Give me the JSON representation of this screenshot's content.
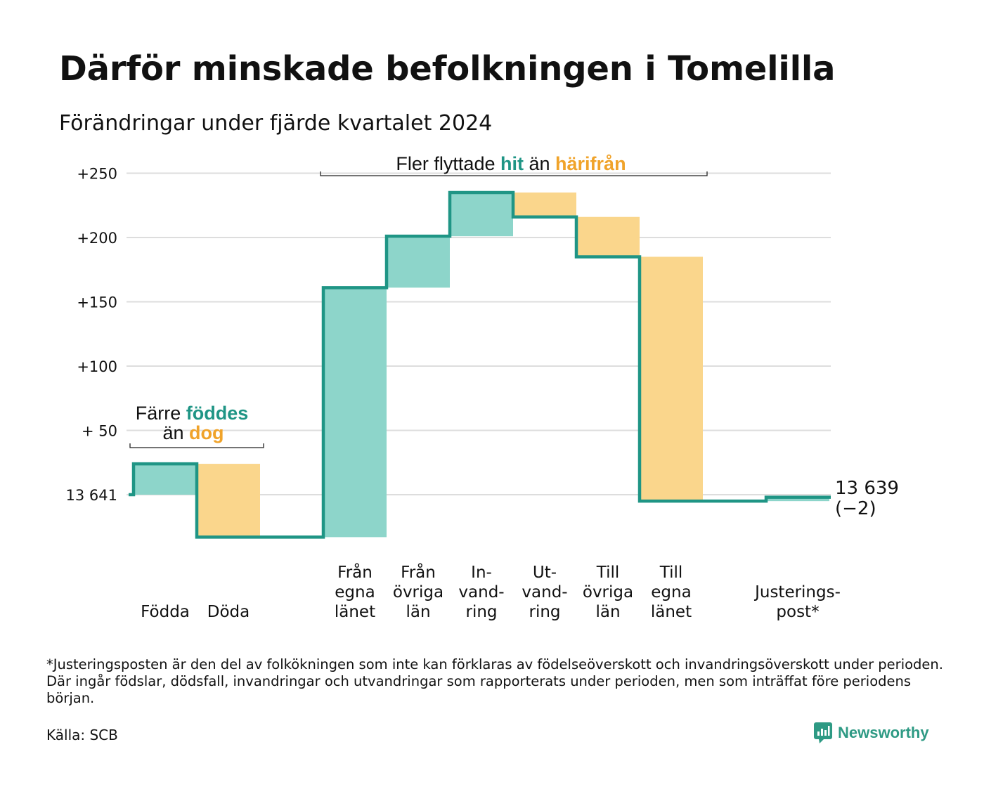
{
  "title": "Därför minskade befolkningen i Tomelilla",
  "subtitle": "Förändringar under fjärde kvartalet 2024",
  "colors": {
    "inflow": "#8dd5ca",
    "outflow": "#fad68c",
    "line": "#1f9585",
    "grid": "#dddddd",
    "highlight_in": "#1f9585",
    "highlight_out": "#f0a32a",
    "brand": "#2e9a84"
  },
  "chart_data": {
    "type": "waterfall",
    "baseline_label": "13 641",
    "yaxis_ticks": [
      {
        "value": 0,
        "label": "13 641"
      },
      {
        "value": 50,
        "label": "+ 50"
      },
      {
        "value": 100,
        "label": "+100"
      },
      {
        "value": 150,
        "label": "+150"
      },
      {
        "value": 200,
        "label": "+200"
      },
      {
        "value": 250,
        "label": "+250"
      }
    ],
    "ylim": [
      -40,
      250
    ],
    "steps": [
      {
        "category": [
          "Födda"
        ],
        "start": 0,
        "end": 24,
        "kind": "in"
      },
      {
        "category": [
          "Döda"
        ],
        "start": 24,
        "end": -33,
        "kind": "out"
      },
      {
        "category": [],
        "start": -33,
        "end": -33,
        "kind": "gap"
      },
      {
        "category": [
          "Från",
          "egna",
          "länet"
        ],
        "start": -33,
        "end": 161,
        "kind": "in"
      },
      {
        "category": [
          "Från",
          "övriga",
          "län"
        ],
        "start": 161,
        "end": 201,
        "kind": "in"
      },
      {
        "category": [
          "In-",
          "vand-",
          "ring"
        ],
        "start": 201,
        "end": 235,
        "kind": "in"
      },
      {
        "category": [
          "Ut-",
          "vand-",
          "ring"
        ],
        "start": 235,
        "end": 216,
        "kind": "out"
      },
      {
        "category": [
          "Till",
          "övriga",
          "län"
        ],
        "start": 216,
        "end": 185,
        "kind": "out"
      },
      {
        "category": [
          "Till",
          "egna",
          "länet"
        ],
        "start": 185,
        "end": -5,
        "kind": "out"
      },
      {
        "category": [],
        "start": -5,
        "end": -5,
        "kind": "gap"
      },
      {
        "category": [
          "Justerings-",
          "post*"
        ],
        "start": -5,
        "end": -2,
        "kind": "in"
      }
    ],
    "end_label": [
      "13 639",
      "(−2)"
    ],
    "annotations": [
      {
        "parts": [
          {
            "text": "Färre ",
            "style": "plain"
          },
          {
            "text": "föddes",
            "style": "in"
          }
        ],
        "parts2": [
          {
            "text": "än ",
            "style": "plain"
          },
          {
            "text": "dog",
            "style": "out"
          }
        ]
      },
      {
        "parts": [
          {
            "text": "Fler flyttade ",
            "style": "plain"
          },
          {
            "text": "hit",
            "style": "in"
          },
          {
            "text": "  än ",
            "style": "plain"
          },
          {
            "text": "härifrån",
            "style": "out"
          }
        ]
      }
    ]
  },
  "footnote": "*Justeringsposten är den del av folkökningen som inte kan förklaras av födelseöverskott och invandringsöverskott under perioden. Där ingår födslar, dödsfall, invandringar och utvandringar som rapporterats under perioden, men som inträffat före periodens början.",
  "source": "Källa: SCB",
  "brand": {
    "name": "Newsworthy",
    "icon": "newsworthy-logo-icon"
  }
}
